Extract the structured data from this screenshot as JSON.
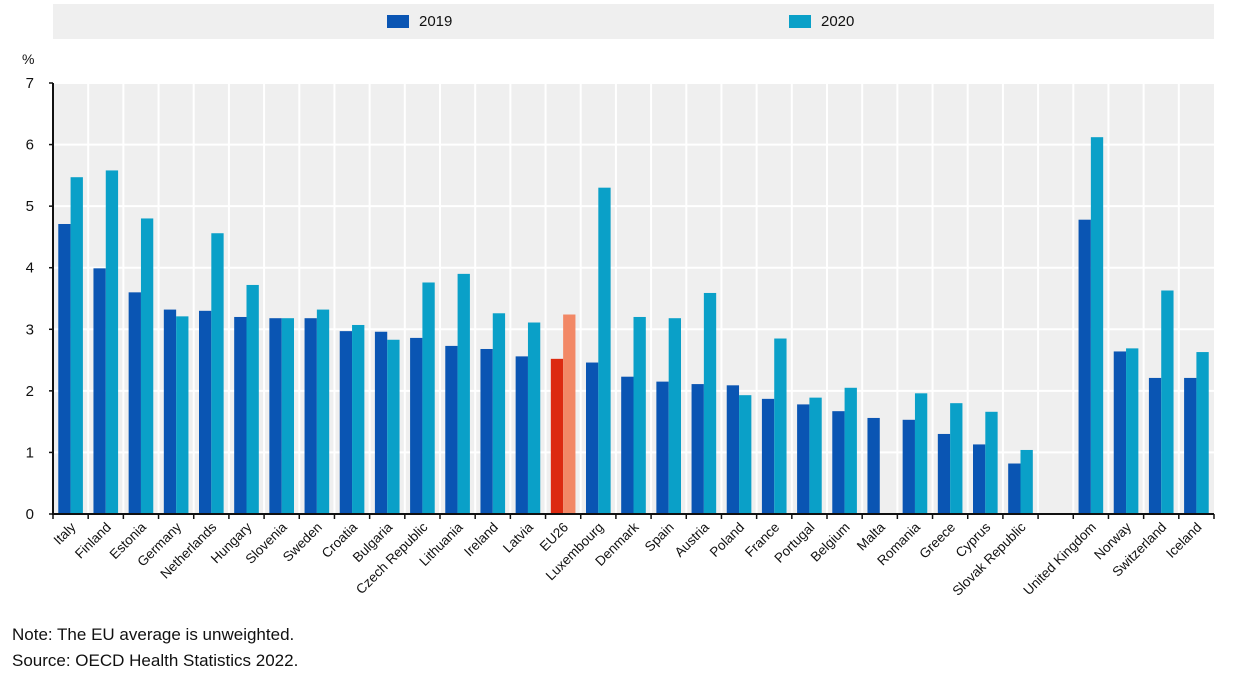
{
  "chart_data": {
    "type": "bar",
    "title": "",
    "xlabel": "",
    "ylabel": "%",
    "ylim": [
      0,
      7
    ],
    "yticks": [
      0,
      1,
      2,
      3,
      4,
      5,
      6,
      7
    ],
    "grid": true,
    "legend_position": "top",
    "categories": [
      "Italy",
      "Finland",
      "Estonia",
      "Germany",
      "Netherlands",
      "Hungary",
      "Slovenia",
      "Sweden",
      "Croatia",
      "Bulgaria",
      "Czech Republic",
      "Lithuania",
      "Ireland",
      "Latvia",
      "EU26",
      "Luxembourg",
      "Denmark",
      "Spain",
      "Austria",
      "Poland",
      "France",
      "Portugal",
      "Belgium",
      "Malta",
      "Romania",
      "Greece",
      "Cyprus",
      "Slovak Republic",
      "",
      "United Kingdom",
      "Norway",
      "Switzerland",
      "Iceland"
    ],
    "highlight_category": "EU26",
    "series": [
      {
        "name": "2019",
        "color": "#0a55b3",
        "highlight_color": "#dc2a10",
        "values": [
          4.71,
          3.99,
          3.6,
          3.32,
          3.3,
          3.2,
          3.18,
          3.18,
          2.97,
          2.96,
          2.86,
          2.73,
          2.68,
          2.56,
          2.52,
          2.46,
          2.23,
          2.15,
          2.11,
          2.09,
          1.87,
          1.78,
          1.67,
          1.56,
          1.53,
          1.3,
          1.13,
          0.82,
          null,
          4.78,
          2.64,
          2.21,
          2.21
        ]
      },
      {
        "name": "2020",
        "color": "#0aa0c8",
        "highlight_color": "#f28866",
        "values": [
          5.47,
          5.58,
          4.8,
          3.21,
          4.56,
          3.72,
          3.18,
          3.32,
          3.07,
          2.83,
          3.76,
          3.9,
          3.26,
          3.11,
          3.24,
          5.3,
          3.2,
          3.18,
          3.59,
          1.93,
          2.85,
          1.89,
          2.05,
          null,
          1.96,
          1.8,
          1.66,
          1.04,
          null,
          6.12,
          2.69,
          3.63,
          2.63
        ]
      }
    ]
  },
  "footer": {
    "note": "Note: The EU average is unweighted.",
    "source": "Source: OECD Health Statistics 2022."
  }
}
